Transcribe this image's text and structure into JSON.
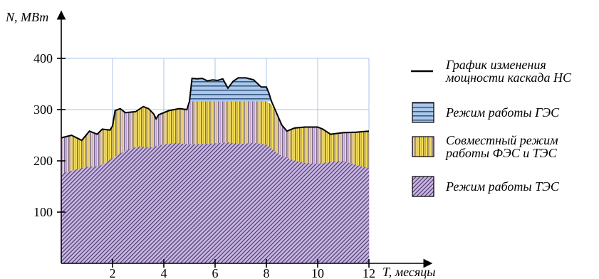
{
  "chart_data": {
    "type": "area",
    "title": "",
    "xlabel": "T, месяцы",
    "ylabel": "N, МВт",
    "xlim": [
      0,
      12
    ],
    "ylim": [
      0,
      400
    ],
    "x_ticks": [
      2,
      4,
      6,
      8,
      10,
      12
    ],
    "y_ticks": [
      100,
      200,
      300,
      400
    ],
    "grid": true,
    "legend_position": "right",
    "colors": {
      "tes": "#c9b6e4",
      "fes_tes": "#f3dc5c",
      "ges": "#a9c8ea",
      "grid": "#a8c4ea",
      "line": "#000000"
    },
    "series": [
      {
        "key": "tes",
        "name": "Режим работы ТЭС",
        "x": [
          0,
          0.5,
          1,
          1.5,
          2,
          2.5,
          3,
          3.5,
          4,
          4.5,
          5,
          5.5,
          6,
          6.5,
          7,
          7.5,
          8,
          8.5,
          9,
          9.5,
          10,
          10.5,
          11,
          11.5,
          12
        ],
        "values": [
          175,
          182,
          188,
          190,
          205,
          220,
          228,
          226,
          232,
          235,
          232,
          233,
          234,
          236,
          233,
          235,
          232,
          212,
          202,
          196,
          194,
          198,
          200,
          192,
          186
        ]
      },
      {
        "key": "fes_tes",
        "name": "Совместный режим работы ФЭС и ТЭС",
        "x": [
          0,
          0.4,
          0.8,
          1.1,
          1.4,
          1.6,
          1.9,
          2.0,
          2.1,
          2.3,
          2.5,
          2.9,
          3.2,
          3.4,
          3.6,
          3.7,
          3.8,
          4.2,
          4.6,
          4.9,
          5.0,
          5.5,
          6.0,
          6.5,
          7.0,
          7.5,
          8.0,
          8.2,
          8.6,
          8.8,
          9.1,
          9.5,
          10,
          10.2,
          10.5,
          11,
          11.5,
          12
        ],
        "values": [
          245,
          250,
          240,
          258,
          252,
          262,
          260,
          268,
          298,
          302,
          294,
          296,
          306,
          302,
          292,
          282,
          290,
          298,
          302,
          300,
          316,
          316,
          316,
          316,
          316,
          316,
          316,
          310,
          270,
          258,
          264,
          266,
          266,
          262,
          252,
          255,
          256,
          258
        ]
      },
      {
        "key": "ges",
        "name": "Режим работы ГЭС",
        "x": [
          5.0,
          5.1,
          5.3,
          5.5,
          5.7,
          5.9,
          6.1,
          6.3,
          6.5,
          6.7,
          6.9,
          7.2,
          7.5,
          7.8,
          8.0,
          8.1,
          8.2
        ],
        "values": [
          316,
          361,
          360,
          361,
          356,
          358,
          357,
          360,
          342,
          355,
          362,
          362,
          358,
          344,
          344,
          332,
          316
        ]
      }
    ],
    "line_series": {
      "name": "График изменения мощности каскада НС"
    }
  },
  "legend": [
    {
      "key": "line",
      "text": [
        "График изменения",
        "мощности каскада НС"
      ]
    },
    {
      "key": "ges",
      "text": [
        "Режим работы ГЭС"
      ]
    },
    {
      "key": "fes_tes",
      "text": [
        "Совместный режим",
        "работы ФЭС и ТЭС"
      ]
    },
    {
      "key": "tes",
      "text": [
        "Режим работы ТЭС"
      ]
    }
  ]
}
